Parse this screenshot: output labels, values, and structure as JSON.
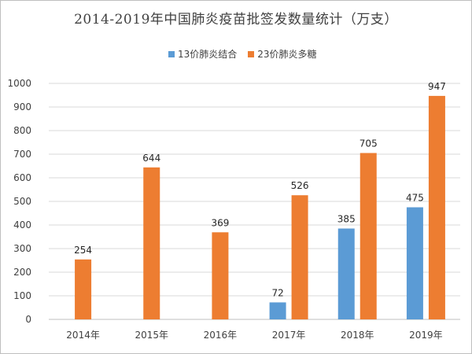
{
  "chart_data": {
    "type": "bar",
    "title": "2014-2019年中国肺炎疫苗批签发数量统计（万支）",
    "categories": [
      "2014年",
      "2015年",
      "2016年",
      "2017年",
      "2018年",
      "2019年"
    ],
    "series": [
      {
        "name": "13价肺炎结合",
        "color": "#5b9bd5",
        "values": [
          null,
          null,
          null,
          72,
          385,
          475
        ]
      },
      {
        "name": "23价肺炎多糖",
        "color": "#ed7d31",
        "values": [
          254,
          644,
          369,
          526,
          705,
          947
        ]
      }
    ],
    "ylim": [
      0,
      1000
    ],
    "yticks": [
      0,
      100,
      200,
      300,
      400,
      500,
      600,
      700,
      800,
      900,
      1000
    ],
    "grid": true,
    "legend_position": "top"
  }
}
